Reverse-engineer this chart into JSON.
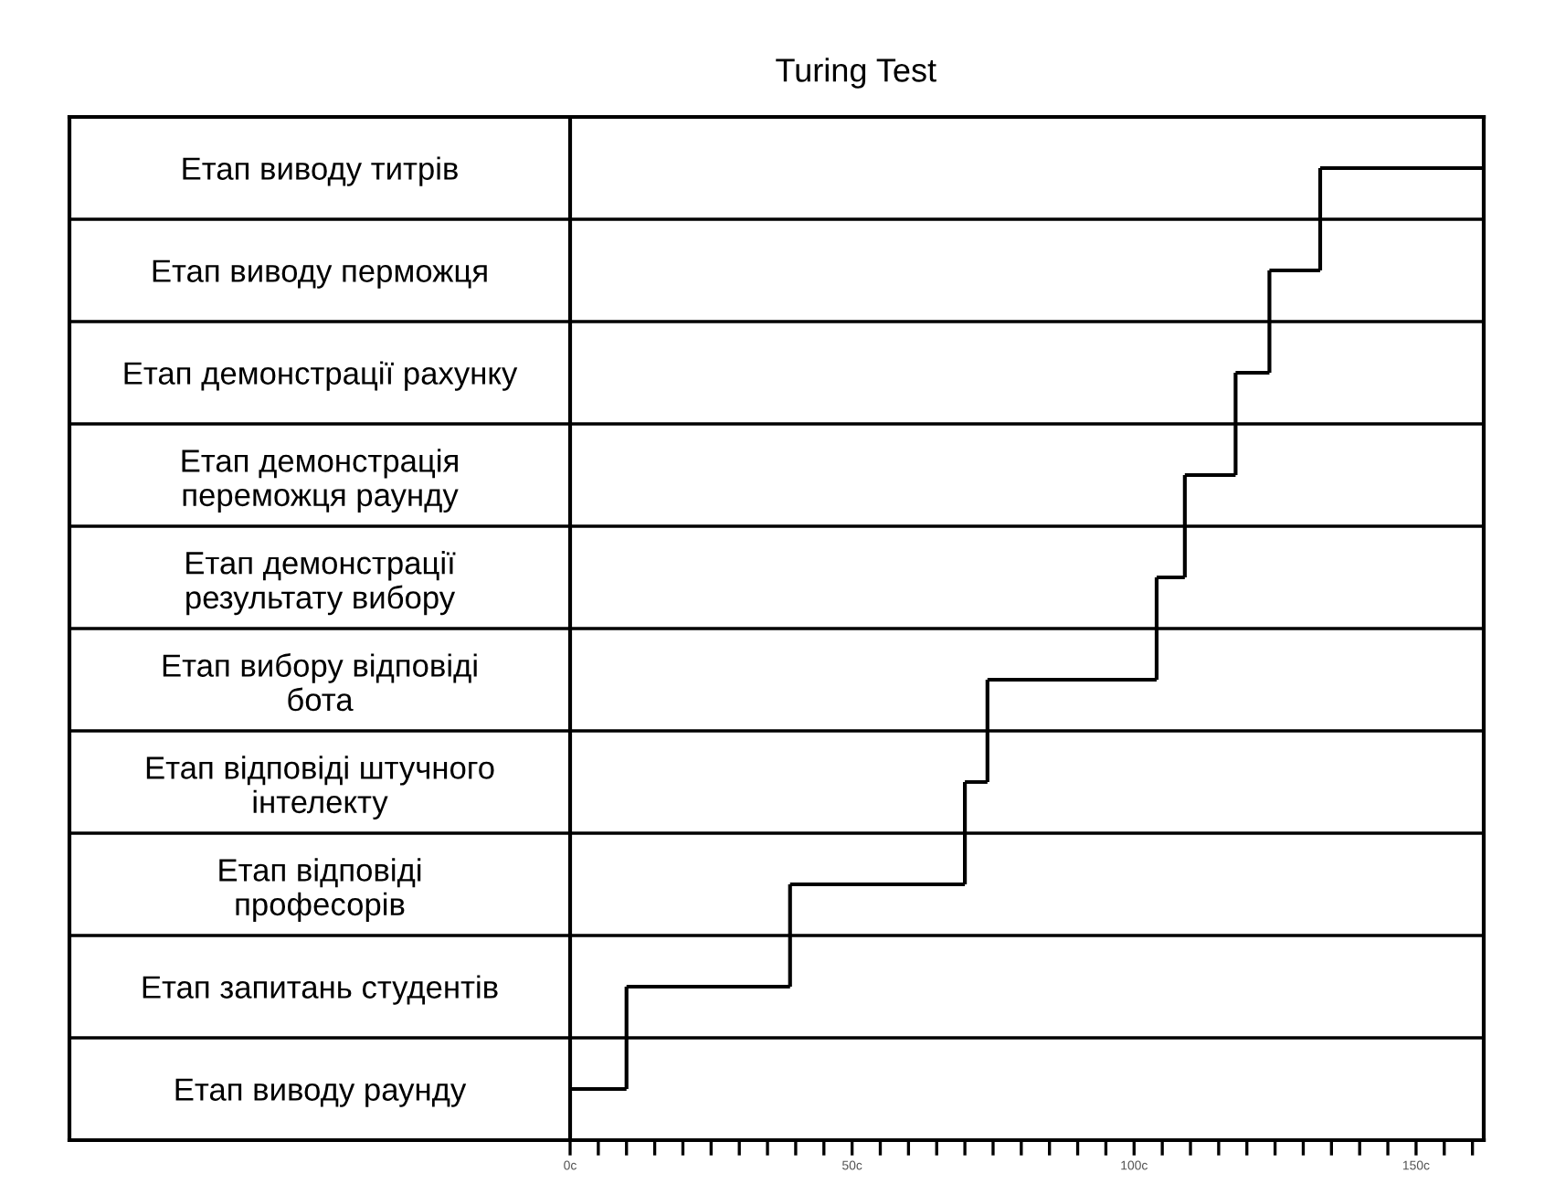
{
  "chart_data": {
    "type": "bar",
    "orientation": "horizontal",
    "title": "Turing Test",
    "categories": [
      "Етап виводу титрів",
      "Етап виводу перможця",
      "Етап демонстрації рахунку",
      "Етап демонстрація\nпереможця раунду",
      "Етап демонстрації\nрезультату вибору",
      "Етап вибору відповіді\nбота",
      "Етап відповіді штучного\nінтелекту",
      "Етап відповіді\nпрофесорів",
      "Етап запитань студентів",
      "Етап виводу раунду"
    ],
    "series": [
      {
        "color": "#000000",
        "base": [
          133,
          124,
          118,
          109,
          104,
          74,
          70,
          39,
          10,
          0
        ],
        "values": [
          29,
          9,
          6,
          9,
          5,
          30,
          4,
          31,
          29,
          10
        ]
      }
    ],
    "xlim": [
      0,
      162
    ],
    "xticks": [
      {
        "value": 0,
        "label": "0c"
      },
      {
        "value": 5,
        "label": null
      },
      {
        "value": 10,
        "label": null
      },
      {
        "value": 15,
        "label": null
      },
      {
        "value": 20,
        "label": null
      },
      {
        "value": 25,
        "label": null
      },
      {
        "value": 30,
        "label": null
      },
      {
        "value": 35,
        "label": null
      },
      {
        "value": 40,
        "label": null
      },
      {
        "value": 45,
        "label": null
      },
      {
        "value": 50,
        "label": "50c"
      },
      {
        "value": 55,
        "label": null
      },
      {
        "value": 60,
        "label": null
      },
      {
        "value": 65,
        "label": null
      },
      {
        "value": 70,
        "label": null
      },
      {
        "value": 75,
        "label": null
      },
      {
        "value": 80,
        "label": null
      },
      {
        "value": 85,
        "label": null
      },
      {
        "value": 90,
        "label": null
      },
      {
        "value": 95,
        "label": null
      },
      {
        "value": 100,
        "label": "100c"
      },
      {
        "value": 105,
        "label": null
      },
      {
        "value": 110,
        "label": null
      },
      {
        "value": 115,
        "label": null
      },
      {
        "value": 120,
        "label": null
      },
      {
        "value": 125,
        "label": null
      },
      {
        "value": 130,
        "label": null
      },
      {
        "value": 135,
        "label": null
      },
      {
        "value": 140,
        "label": null
      },
      {
        "value": 145,
        "label": null
      },
      {
        "value": 150,
        "label": "150c"
      },
      {
        "value": 155,
        "label": null
      },
      {
        "value": 160,
        "label": null
      }
    ]
  }
}
